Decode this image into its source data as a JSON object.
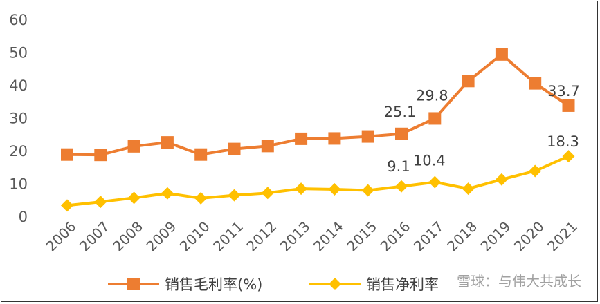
{
  "chart_data": {
    "type": "line",
    "categories": [
      "2006",
      "2007",
      "2008",
      "2009",
      "2010",
      "2011",
      "2012",
      "2013",
      "2014",
      "2015",
      "2016",
      "2017",
      "2018",
      "2019",
      "2020",
      "2021"
    ],
    "ylim": [
      0,
      60
    ],
    "yticks": [
      "0",
      "10",
      "20",
      "30",
      "40",
      "50",
      "60"
    ],
    "grid": false,
    "legend_position": "bottom",
    "series": [
      {
        "name": "销售毛利率(%)",
        "color": "#ed7d31",
        "marker": "square",
        "values": [
          18.8,
          18.7,
          21.3,
          22.5,
          18.8,
          20.5,
          21.4,
          23.6,
          23.7,
          24.3,
          25.1,
          29.8,
          41.2,
          49.3,
          40.5,
          33.7
        ],
        "labels": [
          null,
          null,
          null,
          null,
          null,
          null,
          null,
          null,
          null,
          null,
          "25.1",
          "29.8",
          null,
          null,
          null,
          "33.7"
        ]
      },
      {
        "name": "销售净利率",
        "color": "#ffc000",
        "marker": "diamond",
        "values": [
          3.3,
          4.4,
          5.6,
          7.0,
          5.5,
          6.4,
          7.1,
          8.4,
          8.2,
          7.9,
          9.1,
          10.4,
          8.4,
          11.2,
          13.8,
          18.3
        ],
        "labels": [
          null,
          null,
          null,
          null,
          null,
          null,
          null,
          null,
          null,
          null,
          "9.1",
          "10.4",
          null,
          null,
          null,
          "18.3"
        ]
      }
    ]
  },
  "watermark": "雪球：与伟大共成长"
}
